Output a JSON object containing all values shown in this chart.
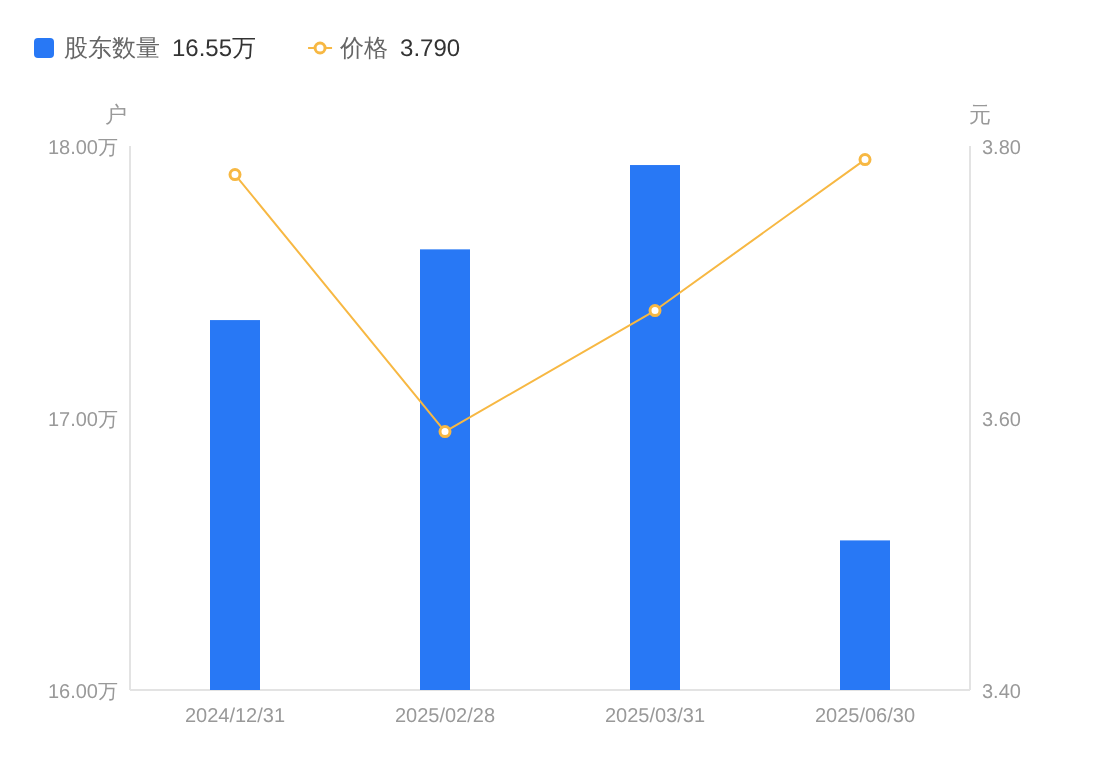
{
  "chart_data": {
    "type": "bar",
    "ylabel": "户",
    "y2label": "元",
    "categories": [
      "2024/12/31",
      "2025/02/28",
      "2025/03/31",
      "2025/06/30"
    ],
    "series": [
      {
        "name": "股东数量",
        "color": "#2878f5",
        "values": [
          17.36,
          17.62,
          17.93,
          16.55
        ]
      },
      {
        "name": "价格",
        "type": "line",
        "axis": "y2",
        "color": "#f7b843",
        "marker": "circle",
        "values": [
          3.779,
          3.59,
          3.679,
          3.79
        ]
      }
    ],
    "ylim": [
      16,
      18
    ],
    "yticks": [
      {
        "value": 16,
        "label": "16.00万"
      },
      {
        "value": 17,
        "label": "17.00万"
      },
      {
        "value": 18,
        "label": "18.00万"
      }
    ],
    "y2lim": [
      3.4,
      3.8
    ],
    "y2ticks": [
      {
        "value": 3.4,
        "label": "3.40"
      },
      {
        "value": 3.6,
        "label": "3.60"
      },
      {
        "value": 3.8,
        "label": "3.80"
      }
    ],
    "annotations": [
      "16.55万",
      "3.790"
    ],
    "legend": "top left",
    "grid": false
  }
}
